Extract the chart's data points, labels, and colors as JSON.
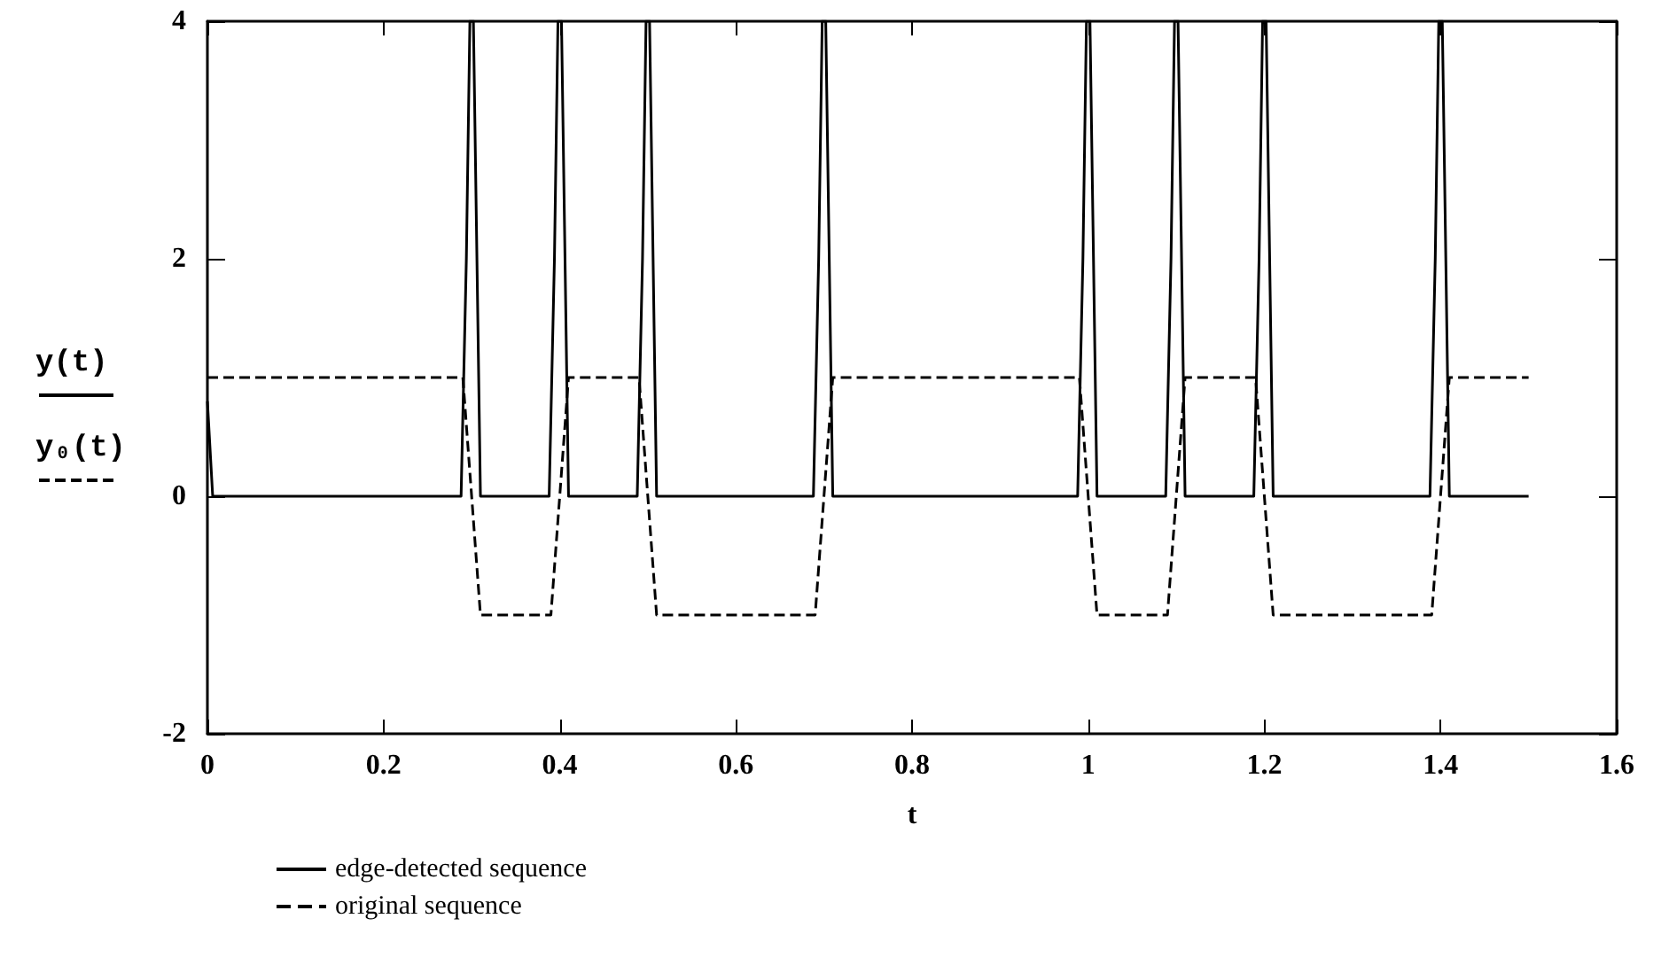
{
  "chart_data": {
    "type": "line",
    "xlabel": "t",
    "ylabel": "y(t)\ny₀(t)",
    "xlim": [
      0,
      1.6
    ],
    "xticks": [
      0,
      0.2,
      0.4,
      0.6,
      0.8,
      1,
      1.2,
      1.4,
      1.6
    ],
    "ylim": [
      -2,
      4
    ],
    "yticks": [
      -2,
      0,
      2,
      4
    ],
    "grid": false,
    "legend": "bottom left",
    "marker": "none",
    "series": [
      {
        "name": "edge-detected sequence",
        "color": "#000000",
        "line_style": "solid",
        "x": [
          0,
          0.006,
          0.288,
          0.294,
          0.298,
          0.302,
          0.306,
          0.31,
          0.388,
          0.394,
          0.398,
          0.402,
          0.406,
          0.41,
          0.488,
          0.494,
          0.498,
          0.502,
          0.506,
          0.51,
          0.688,
          0.694,
          0.698,
          0.702,
          0.706,
          0.71,
          0.988,
          0.994,
          0.998,
          1.002,
          1.006,
          1.01,
          1.088,
          1.094,
          1.098,
          1.102,
          1.106,
          1.11,
          1.188,
          1.194,
          1.198,
          1.202,
          1.206,
          1.21,
          1.388,
          1.394,
          1.398,
          1.402,
          1.406,
          1.41,
          1.5
        ],
        "values": [
          0.8,
          0,
          0,
          2,
          4,
          4,
          2,
          0,
          0,
          2,
          4,
          4,
          2,
          0,
          0,
          2,
          4,
          4,
          2,
          0,
          0,
          2,
          4,
          4,
          2,
          0,
          0,
          2,
          4,
          4,
          2,
          0,
          0,
          2,
          4,
          4,
          2,
          0,
          0,
          2,
          4,
          4,
          2,
          0,
          0,
          2,
          4,
          4,
          2,
          0,
          0
        ]
      },
      {
        "name": "original sequence",
        "color": "#000000",
        "line_style": "dashed",
        "x": [
          0,
          0.29,
          0.31,
          0.39,
          0.41,
          0.49,
          0.51,
          0.69,
          0.71,
          0.99,
          1.01,
          1.09,
          1.11,
          1.19,
          1.21,
          1.39,
          1.41,
          1.5
        ],
        "values": [
          1,
          1,
          -1,
          -1,
          1,
          1,
          -1,
          -1,
          1,
          1,
          -1,
          -1,
          1,
          1,
          -1,
          -1,
          1,
          1
        ]
      }
    ]
  }
}
